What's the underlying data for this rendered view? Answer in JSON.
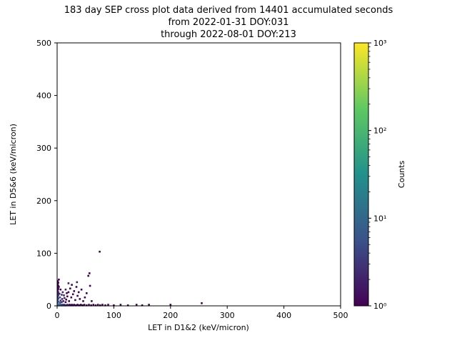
{
  "title": {
    "line1": "183 day SEP cross plot data derived from 14401 accumulated seconds",
    "line2": "from 2022-01-31 DOY:031",
    "line3": "through 2022-08-01 DOY:213"
  },
  "chart_data": {
    "type": "scatter",
    "title": "183 day SEP cross plot data derived from 14401 accumulated seconds\nfrom 2022-01-31 DOY:031\nthrough 2022-08-01 DOY:213",
    "xlabel": "LET in D1&2 (keV/micron)",
    "ylabel": "LET in D5&6 (keV/micron)",
    "xlim": [
      0,
      500
    ],
    "ylim": [
      0,
      500
    ],
    "xticks": [
      0,
      100,
      200,
      300,
      400,
      500
    ],
    "yticks": [
      0,
      100,
      200,
      300,
      400,
      500
    ],
    "grid": false,
    "colorbar": {
      "label": "Counts",
      "scale": "log",
      "min": 1,
      "max": 1000,
      "tick_labels_bottom_to_top": [
        "10⁰",
        "10¹",
        "10²",
        "10³"
      ],
      "colormap": "viridis",
      "colormap_stops": [
        "#440154",
        "#3b528b",
        "#21918c",
        "#5ec962",
        "#fde725"
      ]
    },
    "points_xyc": [
      [
        1,
        1,
        20
      ],
      [
        2,
        1,
        15
      ],
      [
        3,
        2,
        12
      ],
      [
        4,
        1,
        10
      ],
      [
        5,
        2,
        8
      ],
      [
        6,
        1,
        6
      ],
      [
        7,
        2,
        5
      ],
      [
        8,
        1,
        5
      ],
      [
        9,
        2,
        4
      ],
      [
        10,
        1,
        4
      ],
      [
        11,
        2,
        3
      ],
      [
        12,
        1,
        3
      ],
      [
        13,
        2,
        3
      ],
      [
        14,
        1,
        2
      ],
      [
        16,
        1,
        2
      ],
      [
        18,
        2,
        2
      ],
      [
        20,
        1,
        2
      ],
      [
        22,
        2,
        1
      ],
      [
        24,
        1,
        1
      ],
      [
        26,
        2,
        1
      ],
      [
        28,
        1,
        1
      ],
      [
        30,
        2,
        1
      ],
      [
        33,
        1,
        1
      ],
      [
        36,
        2,
        1
      ],
      [
        39,
        1,
        1
      ],
      [
        42,
        2,
        1
      ],
      [
        45,
        1,
        1
      ],
      [
        48,
        2,
        1
      ],
      [
        52,
        1,
        1
      ],
      [
        56,
        2,
        1
      ],
      [
        60,
        1,
        1
      ],
      [
        64,
        2,
        1
      ],
      [
        68,
        1,
        1
      ],
      [
        72,
        2,
        1
      ],
      [
        76,
        1,
        1
      ],
      [
        80,
        2,
        1
      ],
      [
        85,
        1,
        1
      ],
      [
        90,
        2,
        1
      ],
      [
        100,
        1,
        1
      ],
      [
        112,
        2,
        1
      ],
      [
        125,
        1,
        1
      ],
      [
        140,
        2,
        1
      ],
      [
        150,
        1,
        1
      ],
      [
        162,
        2,
        1
      ],
      [
        200,
        2,
        1
      ],
      [
        255,
        5,
        1
      ],
      [
        1,
        5,
        8
      ],
      [
        2,
        8,
        6
      ],
      [
        1,
        11,
        5
      ],
      [
        2,
        14,
        4
      ],
      [
        1,
        17,
        3
      ],
      [
        2,
        20,
        3
      ],
      [
        1,
        23,
        2
      ],
      [
        2,
        26,
        2
      ],
      [
        1,
        29,
        2
      ],
      [
        2,
        32,
        1
      ],
      [
        1,
        35,
        1
      ],
      [
        2,
        38,
        1
      ],
      [
        1,
        41,
        1
      ],
      [
        2,
        44,
        1
      ],
      [
        1,
        47,
        1
      ],
      [
        3,
        50,
        1
      ],
      [
        5,
        6,
        5
      ],
      [
        6,
        10,
        3
      ],
      [
        8,
        7,
        3
      ],
      [
        9,
        13,
        2
      ],
      [
        11,
        9,
        2
      ],
      [
        13,
        15,
        2
      ],
      [
        15,
        7,
        1
      ],
      [
        16,
        12,
        1
      ],
      [
        18,
        18,
        1
      ],
      [
        20,
        26,
        1
      ],
      [
        21,
        9,
        1
      ],
      [
        23,
        33,
        1
      ],
      [
        25,
        16,
        1
      ],
      [
        26,
        40,
        1
      ],
      [
        28,
        22,
        1
      ],
      [
        30,
        28,
        1
      ],
      [
        32,
        11,
        1
      ],
      [
        34,
        36,
        1
      ],
      [
        36,
        19,
        1
      ],
      [
        38,
        26,
        1
      ],
      [
        40,
        13,
        1
      ],
      [
        43,
        31,
        1
      ],
      [
        46,
        9,
        1
      ],
      [
        49,
        16,
        1
      ],
      [
        52,
        24,
        1
      ],
      [
        55,
        57,
        1
      ],
      [
        57,
        62,
        1
      ],
      [
        58,
        38,
        1
      ],
      [
        61,
        9,
        1
      ],
      [
        35,
        45,
        2
      ],
      [
        20,
        43,
        2
      ],
      [
        15,
        31,
        2
      ],
      [
        10,
        26,
        2
      ],
      [
        8,
        21,
        3
      ],
      [
        5,
        16,
        4
      ],
      [
        4,
        23,
        2
      ],
      [
        6,
        31,
        1
      ],
      [
        3,
        36,
        1
      ],
      [
        12,
        20,
        2
      ],
      [
        17,
        24,
        1
      ],
      [
        75,
        103,
        1
      ]
    ]
  }
}
